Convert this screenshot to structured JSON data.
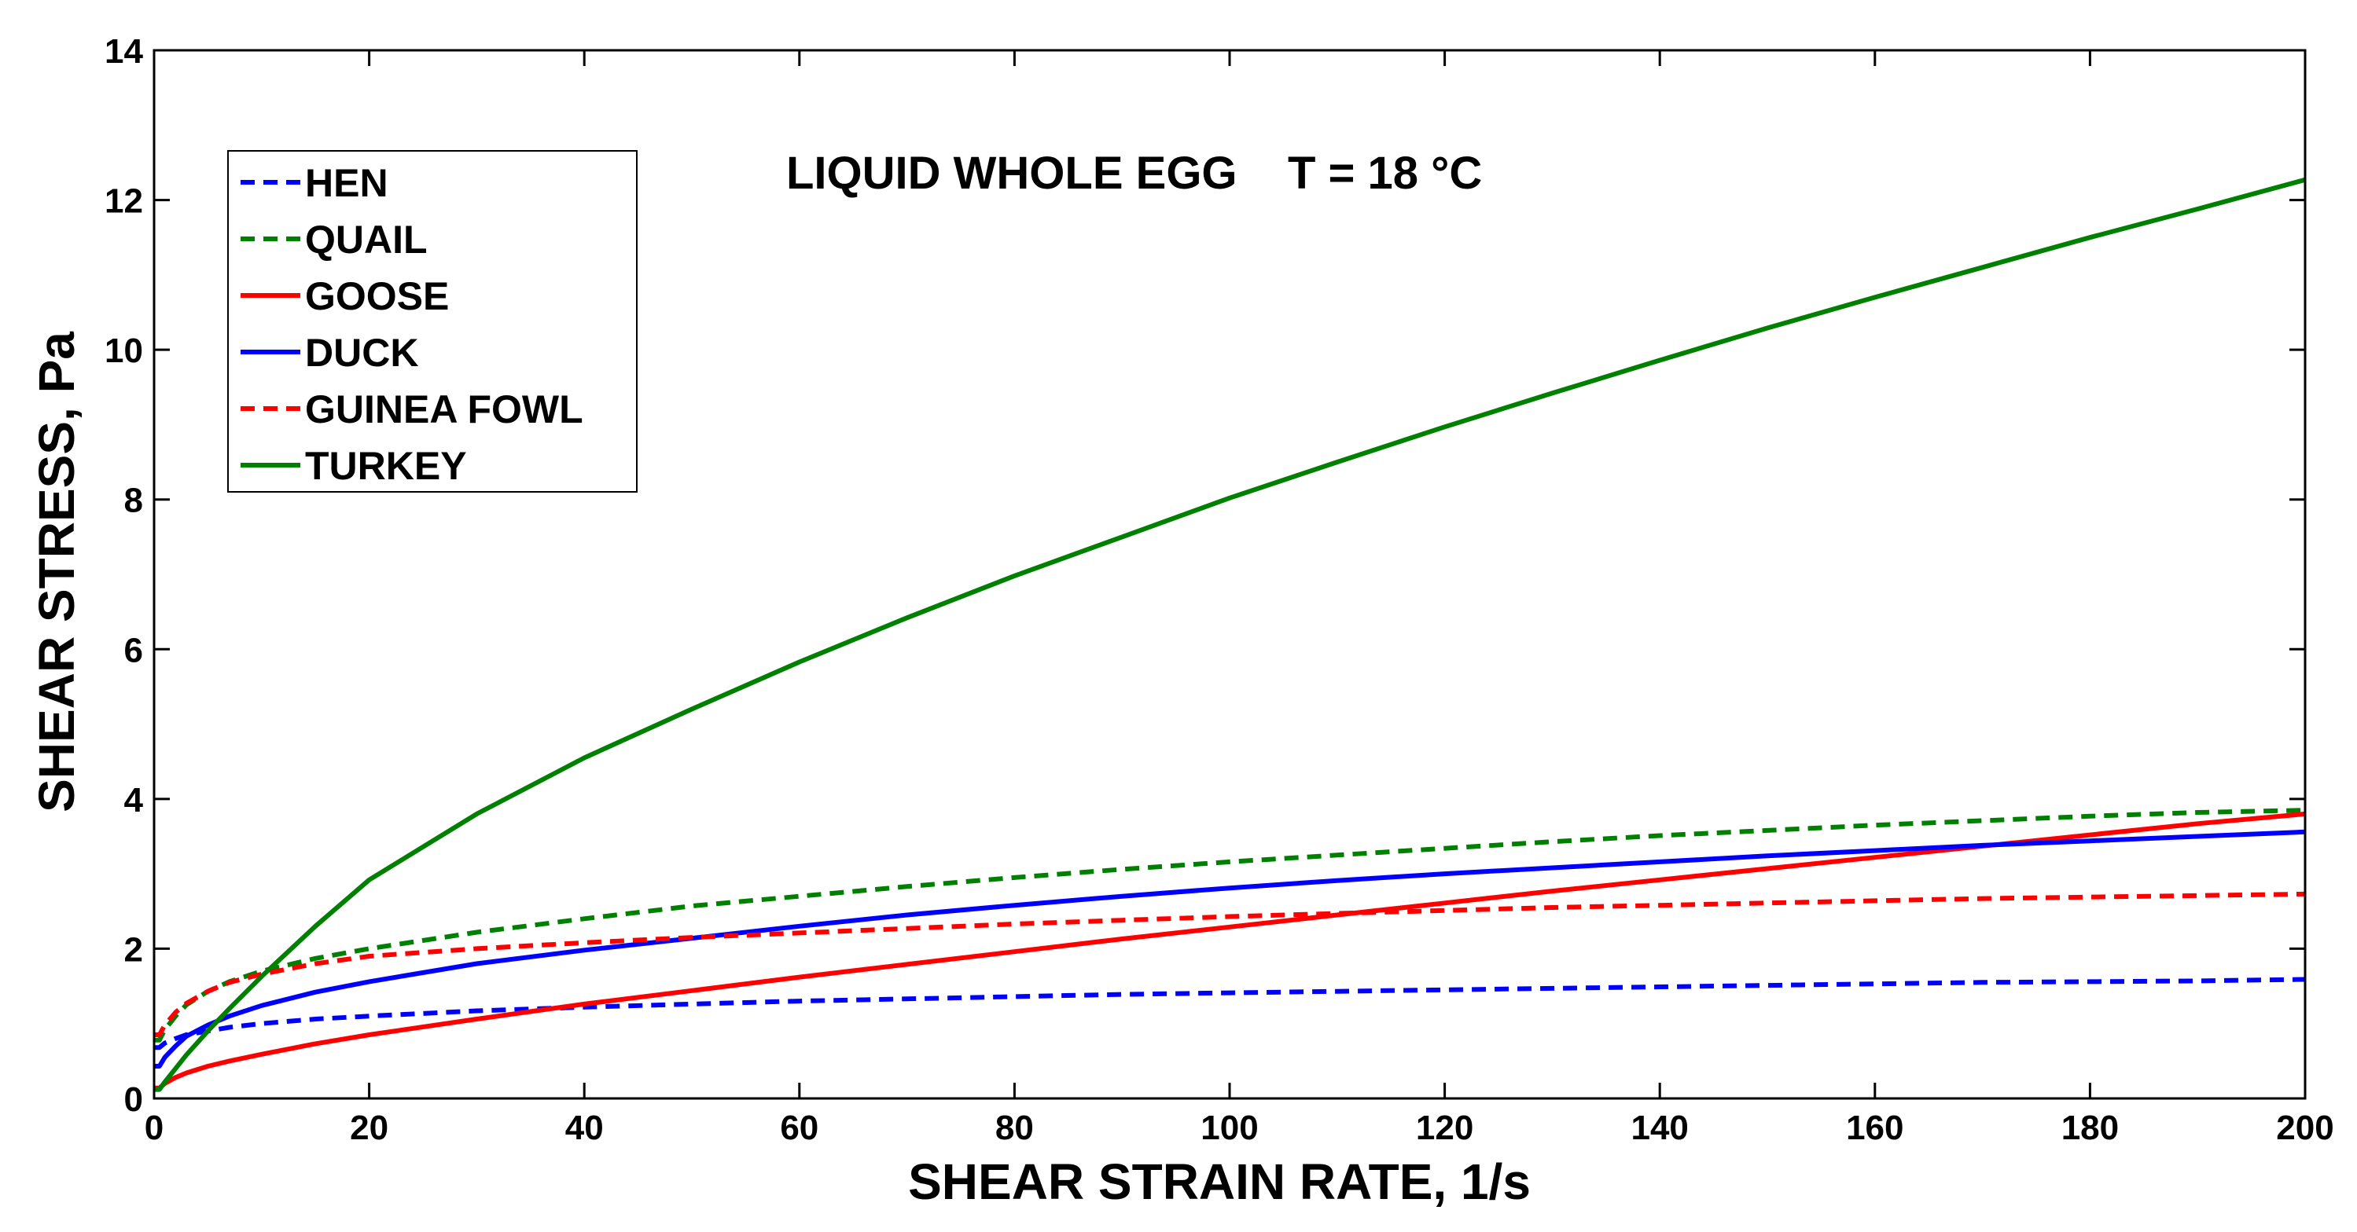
{
  "chart_data": {
    "type": "line",
    "title": "LIQUID WHOLE EGG    T = 18 °C",
    "xlabel": "SHEAR STRAIN RATE, 1/s",
    "ylabel": "SHEAR STRESS, Pa",
    "xlim": [
      0,
      200
    ],
    "ylim": [
      0,
      14
    ],
    "xticks": [
      0,
      20,
      40,
      60,
      80,
      100,
      120,
      140,
      160,
      180,
      200
    ],
    "yticks": [
      0,
      2,
      4,
      6,
      8,
      10,
      12,
      14
    ],
    "grid": false,
    "legend_position": "top-left",
    "x": [
      0.5,
      1,
      2,
      3,
      5,
      7,
      10,
      15,
      20,
      30,
      40,
      50,
      60,
      70,
      80,
      90,
      100,
      110,
      120,
      130,
      140,
      150,
      160,
      170,
      180,
      190,
      200
    ],
    "series": [
      {
        "name": "HEN",
        "color": "#0000ff",
        "dash": "dashed",
        "values": [
          0.68,
          0.74,
          0.8,
          0.85,
          0.9,
          0.95,
          1.0,
          1.06,
          1.1,
          1.17,
          1.22,
          1.26,
          1.3,
          1.33,
          1.36,
          1.39,
          1.41,
          1.43,
          1.45,
          1.47,
          1.49,
          1.51,
          1.53,
          1.55,
          1.56,
          1.57,
          1.59
        ]
      },
      {
        "name": "QUAIL",
        "color": "#008000",
        "dash": "dashed",
        "values": [
          0.78,
          0.92,
          1.1,
          1.25,
          1.43,
          1.56,
          1.7,
          1.87,
          2.0,
          2.22,
          2.4,
          2.57,
          2.7,
          2.83,
          2.95,
          3.06,
          3.16,
          3.25,
          3.34,
          3.43,
          3.51,
          3.58,
          3.65,
          3.71,
          3.77,
          3.82,
          3.85
        ]
      },
      {
        "name": "GOOSE",
        "color": "#ff0000",
        "dash": "solid",
        "values": [
          0.14,
          0.2,
          0.28,
          0.34,
          0.43,
          0.5,
          0.59,
          0.73,
          0.85,
          1.06,
          1.26,
          1.44,
          1.62,
          1.79,
          1.96,
          2.13,
          2.29,
          2.45,
          2.61,
          2.77,
          2.92,
          3.07,
          3.22,
          3.37,
          3.52,
          3.67,
          3.8
        ]
      },
      {
        "name": "DUCK",
        "color": "#0000ff",
        "dash": "solid",
        "values": [
          0.43,
          0.55,
          0.7,
          0.83,
          0.98,
          1.1,
          1.24,
          1.42,
          1.56,
          1.8,
          1.98,
          2.14,
          2.3,
          2.45,
          2.58,
          2.7,
          2.81,
          2.91,
          3.0,
          3.08,
          3.16,
          3.24,
          3.31,
          3.38,
          3.44,
          3.5,
          3.56
        ]
      },
      {
        "name": "GUINEA FOWL",
        "color": "#ff0000",
        "dash": "dashed",
        "values": [
          0.85,
          0.98,
          1.15,
          1.27,
          1.43,
          1.55,
          1.66,
          1.8,
          1.9,
          2.0,
          2.08,
          2.15,
          2.21,
          2.27,
          2.33,
          2.38,
          2.43,
          2.47,
          2.51,
          2.55,
          2.58,
          2.61,
          2.64,
          2.67,
          2.69,
          2.71,
          2.73
        ]
      },
      {
        "name": "TURKEY",
        "color": "#008000",
        "dash": "solid",
        "values": [
          0.12,
          0.22,
          0.4,
          0.58,
          0.9,
          1.2,
          1.63,
          2.3,
          2.92,
          3.8,
          4.55,
          5.2,
          5.83,
          6.42,
          6.98,
          7.5,
          8.02,
          8.5,
          8.97,
          9.42,
          9.86,
          10.29,
          10.7,
          11.1,
          11.5,
          11.88,
          12.27
        ]
      }
    ]
  }
}
